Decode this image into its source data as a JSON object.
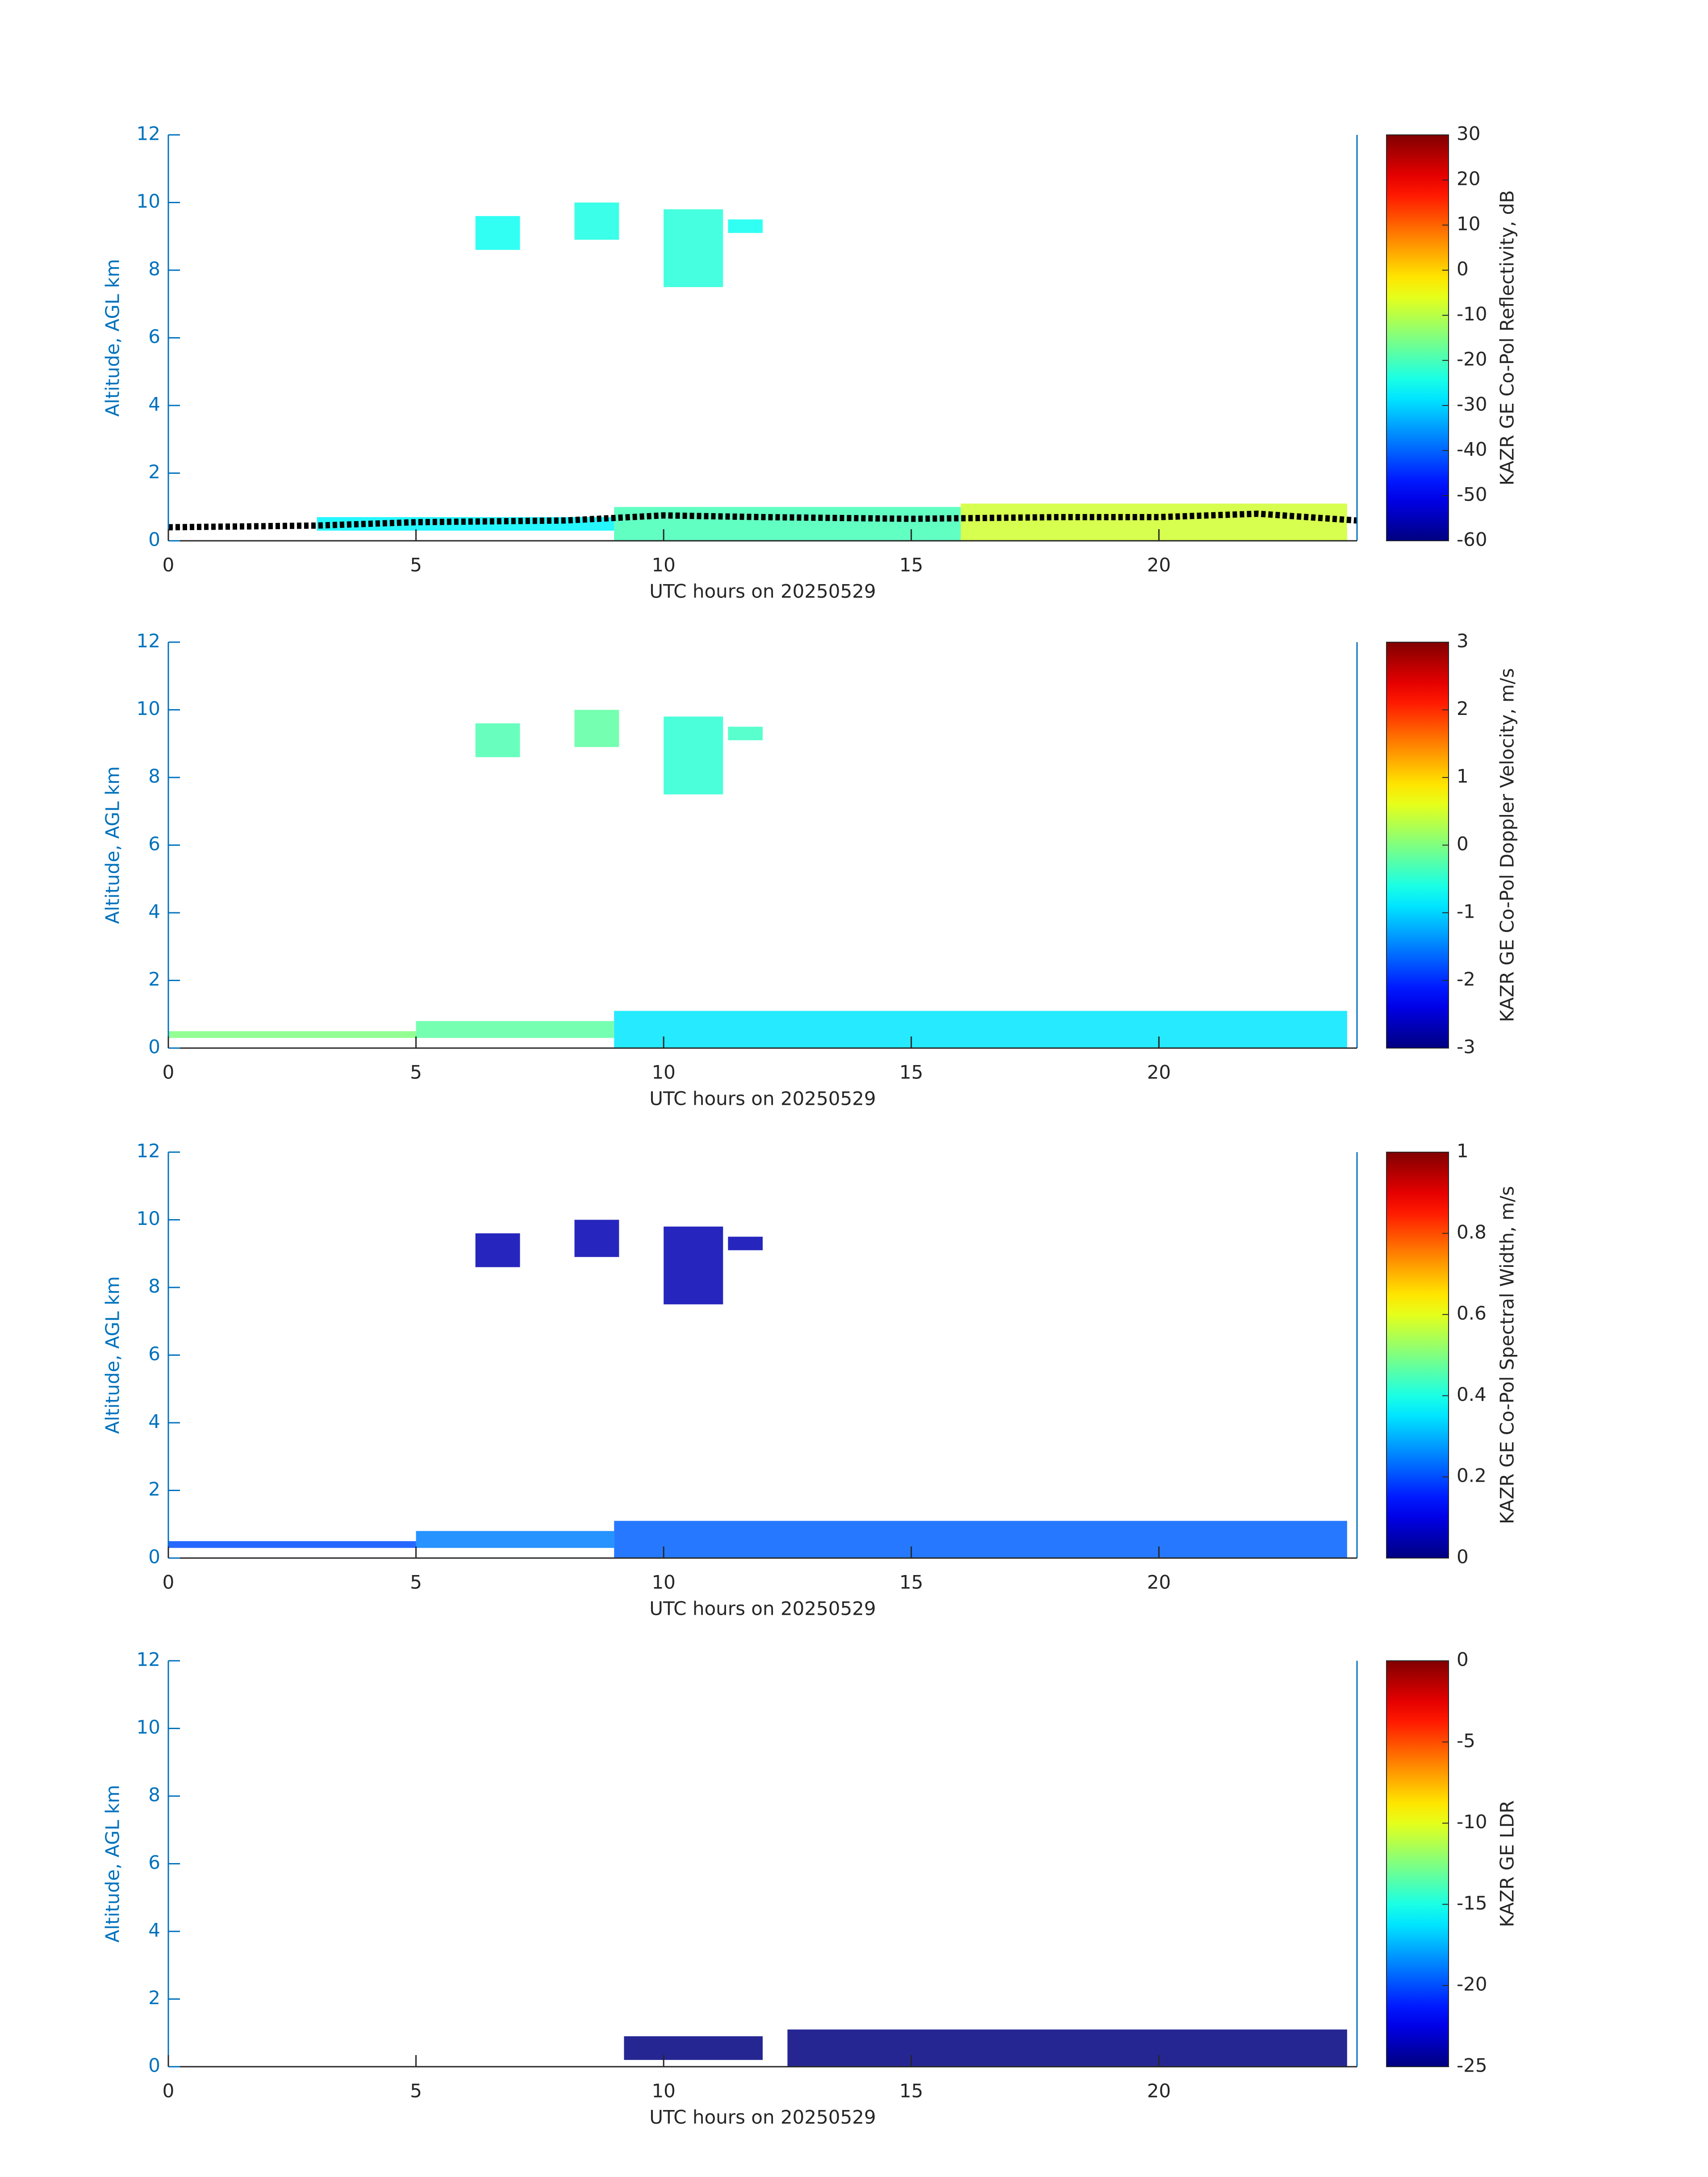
{
  "chart_data": [
    {
      "type": "heatmap",
      "xlabel": "UTC hours on 20250529",
      "ylabel": "Altitude, AGL km",
      "xlim": [
        0,
        24
      ],
      "xticks": [
        0,
        5,
        10,
        15,
        20
      ],
      "ylim": [
        0,
        12
      ],
      "yticks": [
        0,
        2,
        4,
        6,
        8,
        10,
        12
      ],
      "colormap": "jet",
      "colorbar": {
        "label": "KAZR GE Co-Pol Reflectivity, dB",
        "lim": [
          -60,
          30
        ],
        "ticks": [
          -60,
          -50,
          -40,
          -30,
          -20,
          -10,
          0,
          10,
          20,
          30
        ]
      },
      "regions": [
        {
          "x": [
            6.2,
            7.1
          ],
          "y": [
            8.6,
            9.6
          ],
          "value": -25
        },
        {
          "x": [
            8.2,
            9.1
          ],
          "y": [
            8.9,
            10
          ],
          "value": -24
        },
        {
          "x": [
            10,
            11.2
          ],
          "y": [
            7.5,
            9.8
          ],
          "value": -23
        },
        {
          "x": [
            11.3,
            12
          ],
          "y": [
            9.1,
            9.5
          ],
          "value": -25
        },
        {
          "x": [
            3,
            9
          ],
          "y": [
            0.3,
            0.7
          ],
          "value": -27
        },
        {
          "x": [
            9,
            16
          ],
          "y": [
            0,
            1
          ],
          "value": -20
        },
        {
          "x": [
            16,
            23.8
          ],
          "y": [
            0,
            1.1
          ],
          "value": -8
        }
      ],
      "line": {
        "color": "#000000",
        "x": [
          0,
          3,
          5,
          8,
          10,
          12,
          15,
          18,
          20,
          22,
          24
        ],
        "values": [
          0.4,
          0.45,
          0.55,
          0.6,
          0.75,
          0.7,
          0.65,
          0.7,
          0.7,
          0.8,
          0.6
        ]
      }
    },
    {
      "type": "heatmap",
      "xlabel": "UTC hours on 20250529",
      "ylabel": "Altitude, AGL km",
      "xlim": [
        0,
        24
      ],
      "xticks": [
        0,
        5,
        10,
        15,
        20
      ],
      "ylim": [
        0,
        12
      ],
      "yticks": [
        0,
        2,
        4,
        6,
        8,
        10,
        12
      ],
      "colormap": "jet",
      "colorbar": {
        "label": "KAZR GE Co-Pol Doppler Velocity, m/s",
        "lim": [
          -3,
          3
        ],
        "ticks": [
          -3,
          -2,
          -1,
          0,
          1,
          2,
          3
        ]
      },
      "regions": [
        {
          "x": [
            6.2,
            7.1
          ],
          "y": [
            8.6,
            9.6
          ],
          "value": -0.3
        },
        {
          "x": [
            8.2,
            9.1
          ],
          "y": [
            8.9,
            10
          ],
          "value": -0.2
        },
        {
          "x": [
            10,
            11.2
          ],
          "y": [
            7.5,
            9.8
          ],
          "value": -0.5
        },
        {
          "x": [
            11.3,
            12
          ],
          "y": [
            9.1,
            9.5
          ],
          "value": -0.4
        },
        {
          "x": [
            0,
            5
          ],
          "y": [
            0.3,
            0.5
          ],
          "value": 0
        },
        {
          "x": [
            5,
            9
          ],
          "y": [
            0.3,
            0.8
          ],
          "value": -0.2
        },
        {
          "x": [
            9,
            23.8
          ],
          "y": [
            0,
            1.1
          ],
          "value": -0.9
        }
      ]
    },
    {
      "type": "heatmap",
      "xlabel": "UTC hours on 20250529",
      "ylabel": "Altitude, AGL km",
      "xlim": [
        0,
        24
      ],
      "xticks": [
        0,
        5,
        10,
        15,
        20
      ],
      "ylim": [
        0,
        12
      ],
      "yticks": [
        0,
        2,
        4,
        6,
        8,
        10,
        12
      ],
      "colormap": "jet",
      "colorbar": {
        "label": "KAZR GE Co-Pol Spectral Width, m/s",
        "lim": [
          0,
          1
        ],
        "ticks": [
          0,
          0.2,
          0.4,
          0.6,
          0.8,
          1
        ]
      },
      "regions": [
        {
          "x": [
            6.2,
            7.1
          ],
          "y": [
            8.6,
            9.6
          ],
          "value": 0.05
        },
        {
          "x": [
            8.2,
            9.1
          ],
          "y": [
            8.9,
            10
          ],
          "value": 0.05
        },
        {
          "x": [
            10,
            11.2
          ],
          "y": [
            7.5,
            9.8
          ],
          "value": 0.05
        },
        {
          "x": [
            11.3,
            12
          ],
          "y": [
            9.1,
            9.5
          ],
          "value": 0.05
        },
        {
          "x": [
            0,
            5
          ],
          "y": [
            0.3,
            0.5
          ],
          "value": 0.2
        },
        {
          "x": [
            5,
            9
          ],
          "y": [
            0.3,
            0.8
          ],
          "value": 0.25
        },
        {
          "x": [
            9,
            23.8
          ],
          "y": [
            0,
            1.1
          ],
          "value": 0.22
        }
      ]
    },
    {
      "type": "heatmap",
      "xlabel": "UTC hours on 20250529",
      "ylabel": "Altitude, AGL km",
      "xlim": [
        0,
        24
      ],
      "xticks": [
        0,
        5,
        10,
        15,
        20
      ],
      "ylim": [
        0,
        12
      ],
      "yticks": [
        0,
        2,
        4,
        6,
        8,
        10,
        12
      ],
      "colormap": "jet",
      "colorbar": {
        "label": "KAZR GE LDR",
        "lim": [
          -25,
          0
        ],
        "ticks": [
          -25,
          -20,
          -15,
          -10,
          -5,
          0
        ]
      },
      "regions": [
        {
          "x": [
            9.2,
            12
          ],
          "y": [
            0.2,
            0.9
          ],
          "value": -25
        },
        {
          "x": [
            12.5,
            23.8
          ],
          "y": [
            0,
            1.1
          ],
          "value": -25
        }
      ]
    }
  ]
}
